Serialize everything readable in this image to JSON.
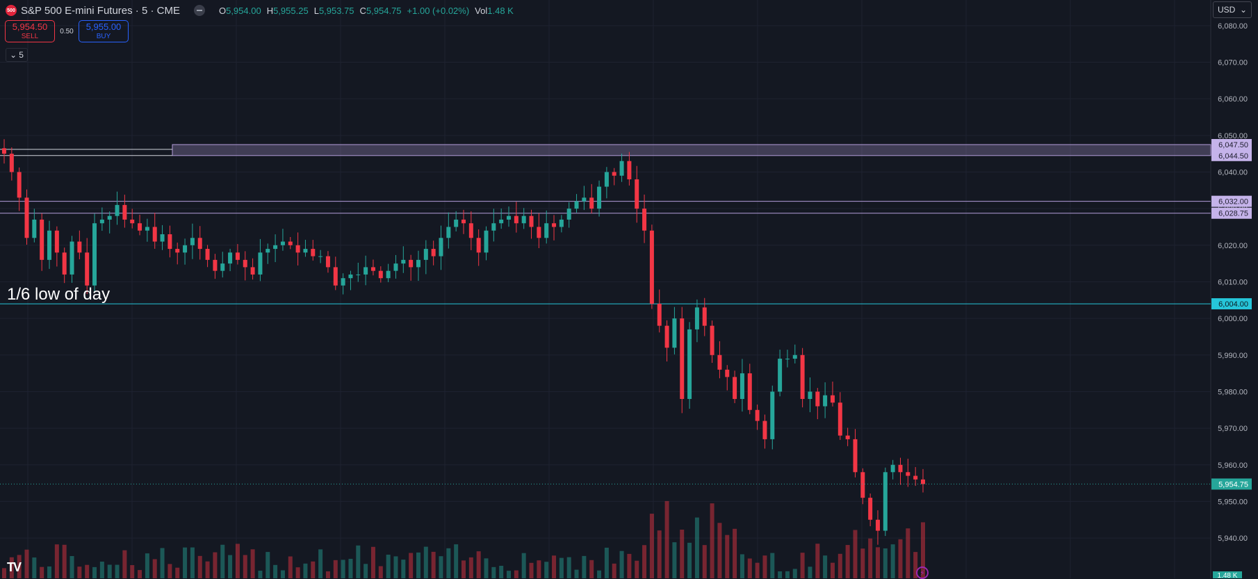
{
  "header": {
    "symbol_badge": "500",
    "title": "S&P 500 E-mini Futures · 5 · CME",
    "ohlc": [
      {
        "k": "O",
        "v": "5,954.00"
      },
      {
        "k": "H",
        "v": "5,955.25"
      },
      {
        "k": "L",
        "v": "5,953.75"
      },
      {
        "k": "C",
        "v": "5,954.75"
      },
      {
        "k": "",
        "v": "+1.00 (+0.02%)"
      },
      {
        "k": "Vol",
        "v": "1.48 K"
      }
    ]
  },
  "trade": {
    "sell_price": "5,954.50",
    "sell_label": "SELL",
    "spread": "0.50",
    "buy_price": "5,955.00",
    "buy_label": "BUY"
  },
  "interval": {
    "label": "5"
  },
  "currency": {
    "label": "USD"
  },
  "annotation": {
    "text": "1/6 low of day"
  },
  "logo": {
    "text": "TV"
  },
  "colors": {
    "background": "#141822",
    "up": "#26a69a",
    "down": "#f23645",
    "zone": "#b39ddb",
    "low_line": "#26c6da"
  },
  "chart_data": {
    "type": "candlestick",
    "price_axis_labels": [
      "6,080.00",
      "6,070.00",
      "6,060.00",
      "6,050.00",
      "6,040.00",
      "6,030.00",
      "6,020.00",
      "6,010.00",
      "6,000.00",
      "5,990.00",
      "5,980.00",
      "5,970.00",
      "5,960.00",
      "5,950.00",
      "5,940.00"
    ],
    "price_axis_values": [
      6080,
      6070,
      6060,
      6050,
      6040,
      6030,
      6020,
      6010,
      6000,
      5990,
      5980,
      5970,
      5960,
      5950,
      5940
    ],
    "ylim": [
      5929,
      6087
    ],
    "grid": true,
    "levels": [
      {
        "label": "6,047.50",
        "value": 6047.5,
        "kind": "zone"
      },
      {
        "label": "6,044.50",
        "value": 6044.5,
        "kind": "zone"
      },
      {
        "label": "6,032.00",
        "value": 6032.0,
        "kind": "zone"
      },
      {
        "label": "6,028.75",
        "value": 6028.75,
        "kind": "zone"
      },
      {
        "label": "6,004.00",
        "value": 6004.0,
        "kind": "low"
      }
    ],
    "last_price": {
      "label": "5,954.75",
      "value": 5954.75
    },
    "volume_label": "1.48 K",
    "close_path": [
      6045,
      6040,
      6033,
      6022,
      6027,
      6016,
      6024,
      6018,
      6012,
      6021,
      6018,
      6009,
      6026,
      6027,
      6028,
      6031,
      6027,
      6026,
      6024,
      6025,
      6021,
      6023,
      6019,
      6018,
      6020,
      6022,
      6019,
      6016,
      6013,
      6015,
      6018,
      6016,
      6014,
      6012,
      6018,
      6019,
      6020,
      6021,
      6020,
      6018,
      6019,
      6017,
      6017,
      6014,
      6009,
      6011,
      6012,
      6012,
      6014,
      6013,
      6011,
      6013,
      6015,
      6016,
      6014,
      6016,
      6019,
      6017,
      6022,
      6025,
      6027,
      6026,
      6022,
      6018,
      6024,
      6026,
      6027,
      6028,
      6026,
      6028,
      6025,
      6022,
      6026,
      6025,
      6027,
      6030,
      6032,
      6033,
      6030,
      6036,
      6040,
      6039,
      6043,
      6038,
      6030,
      6024,
      6004,
      5998,
      5992,
      6000,
      5978,
      5997,
      6003,
      5998,
      5990,
      5986,
      5984,
      5978,
      5985,
      5975,
      5972,
      5967,
      5980,
      5989,
      5989,
      5990,
      5978,
      5980,
      5976,
      5979,
      5977,
      5968,
      5967,
      5958,
      5951,
      5945,
      5942,
      5958,
      5960,
      5958,
      5957,
      5956,
      5954.75
    ]
  }
}
